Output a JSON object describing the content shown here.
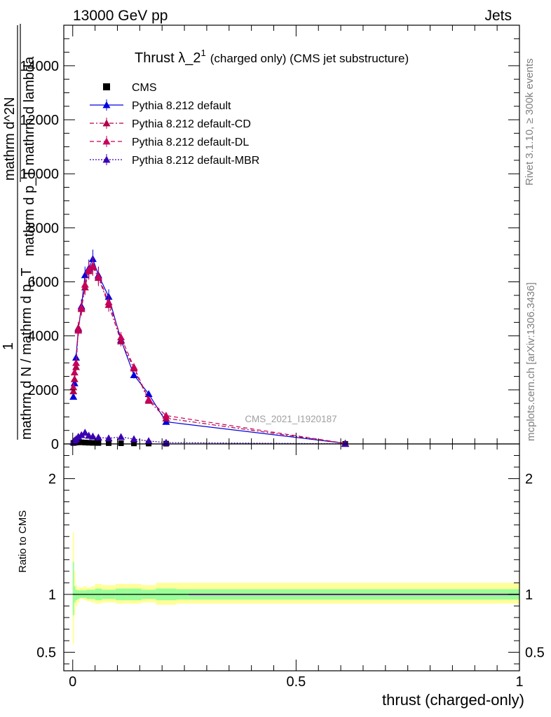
{
  "header": {
    "left": "13000 GeV pp",
    "right": "Jets"
  },
  "side_labels": {
    "rivet": "Rivet 3.1.10, ≥ 300k events",
    "mcplots": "mcplots.cern.ch [arXiv:1306.3436]"
  },
  "watermark": "CMS_2021_I1920187",
  "ylabel_main": {
    "frac_num": "1",
    "frac_den": "mathrm d N / mathrm d p_T",
    "inner_num": "mathrm d^2N",
    "inner_den": "mathrm d p_T mathrm d lambda"
  },
  "ylabel_ratio": "Ratio to CMS",
  "xlabel": "thrust (charged-only)",
  "colors": {
    "band_outer": "#ffff99",
    "band_inner": "#99ff99",
    "default": "#0000dd",
    "cd": "#b0004a",
    "dl": "#c8005a",
    "mbr": "#3a00b0",
    "data": "#000000"
  },
  "chart_data": {
    "type": "line",
    "title": {
      "main": "Thrust λ_2",
      "sup": "1",
      "suffix": "(charged only) (CMS jet substructure)"
    },
    "xlim": [
      -0.02,
      1.0
    ],
    "ylim": [
      0,
      15500
    ],
    "ratio_ylim": [
      0.34,
      2.3
    ],
    "x_ticks": [
      {
        "value": 0,
        "label": "0"
      },
      {
        "value": 0.5,
        "label": "0.5"
      },
      {
        "value": 1,
        "label": "1"
      }
    ],
    "y_ticks": [
      {
        "value": 0,
        "label": "0"
      },
      {
        "value": 2000,
        "label": "2000"
      },
      {
        "value": 4000,
        "label": "4000"
      },
      {
        "value": 6000,
        "label": "6000"
      },
      {
        "value": 8000,
        "label": "8000"
      },
      {
        "value": 10000,
        "label": "10000"
      },
      {
        "value": 12000,
        "label": "12000"
      },
      {
        "value": 14000,
        "label": "14000"
      }
    ],
    "ratio_ticks": [
      {
        "value": 0.5,
        "label": "0.5"
      },
      {
        "value": 1,
        "label": "1"
      },
      {
        "value": 2,
        "label": "2"
      }
    ],
    "x": [
      0.0015,
      0.004,
      0.0075,
      0.0125,
      0.0195,
      0.0275,
      0.036,
      0.045,
      0.0575,
      0.0805,
      0.108,
      0.137,
      0.17,
      0.209,
      0.61
    ],
    "series": [
      {
        "name": "CMS",
        "key": "data",
        "style": "solid",
        "values": [
          35,
          45,
          55,
          60,
          60,
          50,
          45,
          40,
          35,
          30,
          25,
          20,
          15,
          10,
          2
        ]
      },
      {
        "name": "Pythia 8.212 default",
        "key": "default",
        "style": "solid",
        "values": [
          1750,
          2250,
          3200,
          4250,
          5100,
          6250,
          6500,
          6850,
          6250,
          5450,
          3850,
          2550,
          1850,
          820,
          20
        ]
      },
      {
        "name": "Pythia 8.212 default-CD",
        "key": "cd",
        "style": "dashdot",
        "values": [
          1950,
          2400,
          2850,
          4300,
          5000,
          5800,
          6400,
          6550,
          6150,
          5150,
          3800,
          2800,
          1600,
          950,
          20
        ]
      },
      {
        "name": "Pythia 8.212 default-DL",
        "key": "dl",
        "style": "dash",
        "values": [
          2100,
          2650,
          3000,
          4200,
          5050,
          5900,
          6450,
          6600,
          6200,
          5250,
          3950,
          2850,
          1650,
          1050,
          20
        ]
      },
      {
        "name": "Pythia 8.212 default-MBR",
        "key": "mbr",
        "style": "dot",
        "values": [
          80,
          130,
          180,
          270,
          330,
          420,
          310,
          280,
          240,
          210,
          260,
          180,
          110,
          50,
          5
        ]
      }
    ],
    "ratio_bands": {
      "edges": [
        0.0,
        0.003,
        0.006,
        0.01,
        0.015,
        0.024,
        0.031,
        0.041,
        0.05,
        0.065,
        0.096,
        0.12,
        0.154,
        0.186,
        0.232,
        0.26,
        1.0
      ],
      "outer_lo": [
        0.57,
        0.82,
        0.9,
        0.93,
        0.96,
        0.95,
        0.94,
        0.93,
        0.92,
        0.93,
        0.92,
        0.92,
        0.93,
        0.91,
        0.92,
        0.92
      ],
      "outer_hi": [
        1.54,
        1.2,
        1.08,
        1.06,
        1.06,
        1.07,
        1.06,
        1.07,
        1.09,
        1.08,
        1.09,
        1.09,
        1.08,
        1.1,
        1.1,
        1.1
      ],
      "inner_lo": [
        0.82,
        0.93,
        0.95,
        0.96,
        0.97,
        0.97,
        0.96,
        0.96,
        0.95,
        0.96,
        0.95,
        0.95,
        0.96,
        0.95,
        0.955,
        0.955
      ],
      "inner_hi": [
        1.28,
        1.07,
        1.04,
        1.035,
        1.035,
        1.035,
        1.04,
        1.04,
        1.05,
        1.04,
        1.05,
        1.05,
        1.04,
        1.05,
        1.045,
        1.045
      ]
    }
  }
}
